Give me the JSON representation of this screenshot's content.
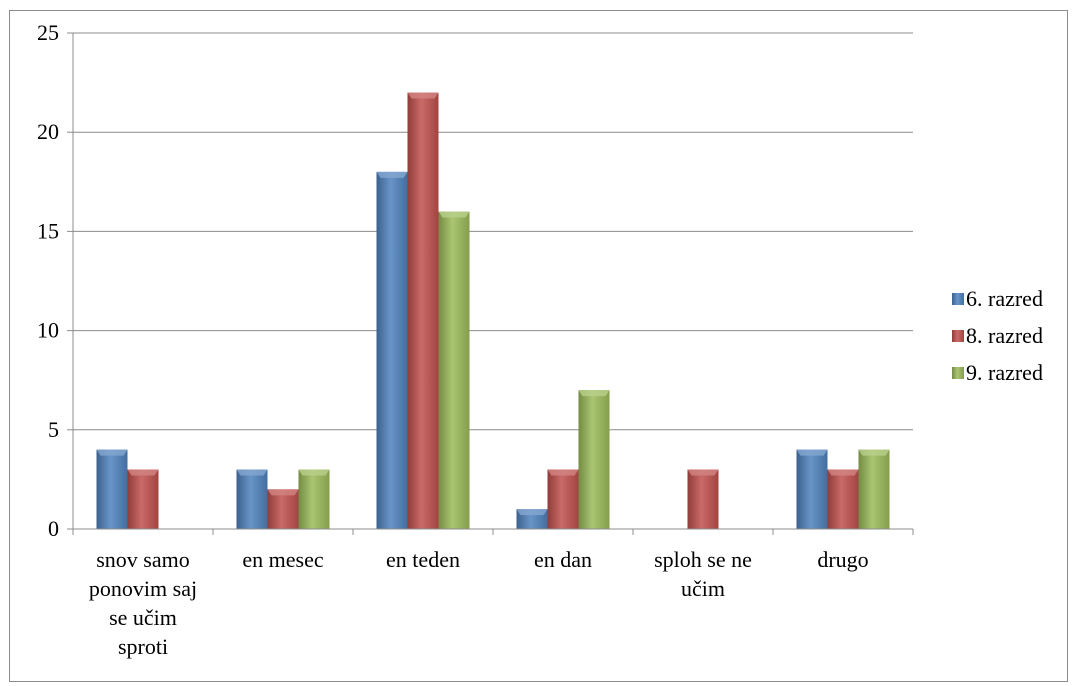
{
  "chart_data": {
    "type": "bar",
    "title": "",
    "xlabel": "",
    "ylabel": "",
    "ylim": [
      0,
      25
    ],
    "yticks": [
      0,
      5,
      10,
      15,
      20,
      25
    ],
    "grid": true,
    "legend_position": "right",
    "categories": [
      [
        "snov samo",
        "ponovim saj",
        "se učim",
        "sproti"
      ],
      [
        "en mesec"
      ],
      [
        "en teden"
      ],
      [
        "en dan"
      ],
      [
        "sploh se ne",
        "učim"
      ],
      [
        "drugo"
      ]
    ],
    "series": [
      {
        "name": "6. razred",
        "color": "#4F81BD",
        "values": [
          4,
          3,
          18,
          1,
          0,
          4
        ]
      },
      {
        "name": "8. razred",
        "color": "#C0504D",
        "values": [
          3,
          2,
          22,
          3,
          3,
          3
        ]
      },
      {
        "name": "9. razred",
        "color": "#9BBB59",
        "values": [
          0,
          3,
          16,
          7,
          0,
          4
        ]
      }
    ]
  }
}
